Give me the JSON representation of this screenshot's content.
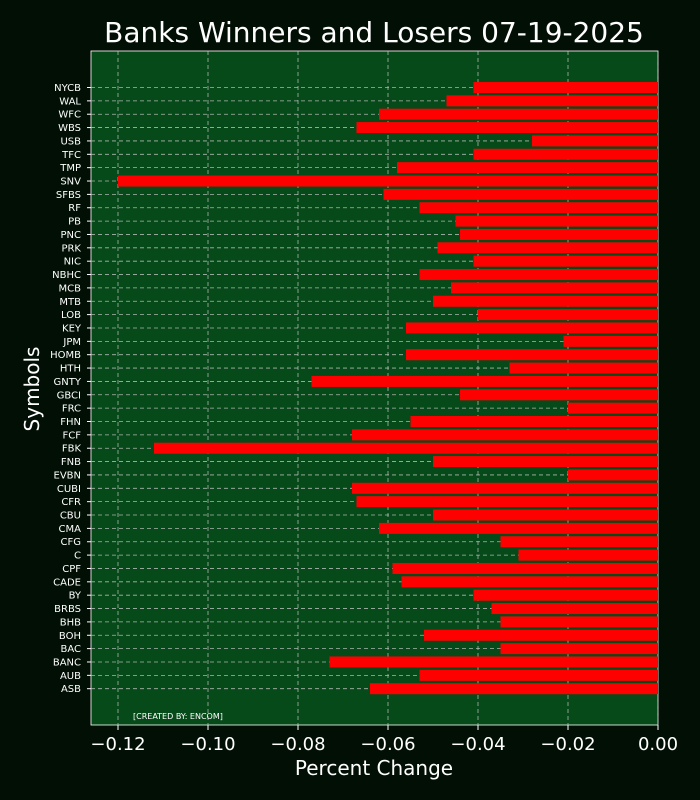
{
  "chart_data": {
    "type": "bar",
    "orientation": "horizontal",
    "title": "Banks Winners and Losers 07-19-2025",
    "xlabel": "Percent Change",
    "ylabel": "Symbols",
    "xlim": [
      -0.126,
      0.0
    ],
    "xticks": [
      -0.12,
      -0.1,
      -0.08,
      -0.06,
      -0.04,
      -0.02,
      0.0
    ],
    "xtick_labels": [
      "−0.12",
      "−0.10",
      "−0.08",
      "−0.06",
      "−0.04",
      "−0.02",
      "0.00"
    ],
    "grid": true,
    "credit": "[CREATED BY: ENCOM]",
    "colors": {
      "figure_bg": "#010f04",
      "plot_bg": "#074a19",
      "bar": "#ff0000",
      "text": "#ffffff",
      "grid": "#c8c8c8"
    },
    "categories": [
      "NYCB",
      "WAL",
      "WFC",
      "WBS",
      "USB",
      "TFC",
      "TMP",
      "SNV",
      "SFBS",
      "RF",
      "PB",
      "PNC",
      "PRK",
      "NIC",
      "NBHC",
      "MCB",
      "MTB",
      "LOB",
      "KEY",
      "JPM",
      "HOMB",
      "HTH",
      "GNTY",
      "GBCI",
      "FRC",
      "FHN",
      "FCF",
      "FBK",
      "FNB",
      "EVBN",
      "CUBI",
      "CFR",
      "CBU",
      "CMA",
      "CFG",
      "C",
      "CPF",
      "CADE",
      "BY",
      "BRBS",
      "BHB",
      "BOH",
      "BAC",
      "BANC",
      "AUB",
      "ASB"
    ],
    "values": [
      -0.041,
      -0.047,
      -0.062,
      -0.067,
      -0.028,
      -0.041,
      -0.058,
      -0.12,
      -0.061,
      -0.053,
      -0.045,
      -0.044,
      -0.049,
      -0.041,
      -0.053,
      -0.046,
      -0.05,
      -0.04,
      -0.056,
      -0.021,
      -0.056,
      -0.033,
      -0.077,
      -0.044,
      -0.02,
      -0.055,
      -0.068,
      -0.112,
      -0.05,
      -0.02,
      -0.068,
      -0.067,
      -0.05,
      -0.062,
      -0.035,
      -0.031,
      -0.059,
      -0.057,
      -0.041,
      -0.037,
      -0.035,
      -0.052,
      -0.035,
      -0.073,
      -0.053,
      -0.064
    ]
  }
}
